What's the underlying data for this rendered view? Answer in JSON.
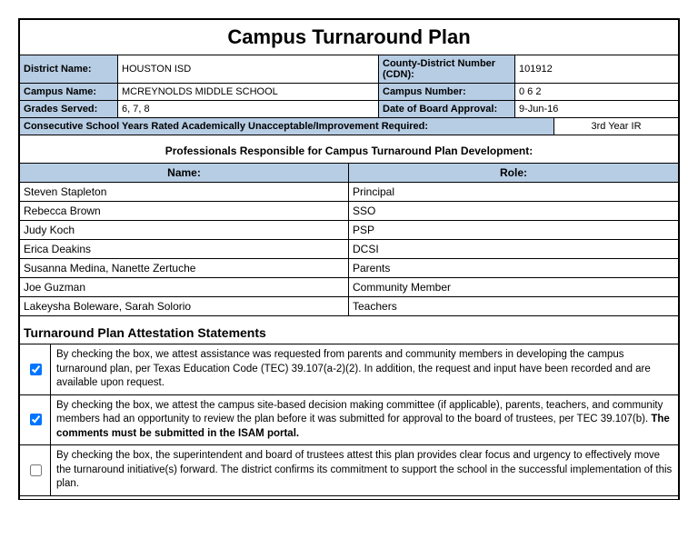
{
  "title": "Campus Turnaround Plan",
  "colors": {
    "header_bg": "#b7cde4",
    "border": "#000000"
  },
  "info": {
    "district_label": "District Name:",
    "district_value": "HOUSTON ISD",
    "cdn_label": "County-District Number (CDN):",
    "cdn_value": "101912",
    "campus_label": "Campus Name:",
    "campus_value": "MCREYNOLDS MIDDLE SCHOOL",
    "campus_num_label": "Campus Number:",
    "campus_num_value": "0 6 2",
    "grades_label": "Grades Served:",
    "grades_value": "6, 7, 8",
    "board_label": "Date of Board Approval:",
    "board_value": "9-Jun-16",
    "consec_label": "Consecutive School Years Rated Academically Unacceptable/Improvement Required:",
    "consec_value": "3rd Year IR"
  },
  "responsibles": {
    "heading": "Professionals Responsible for Campus Turnaround Plan Development:",
    "name_header": "Name:",
    "role_header": "Role:",
    "rows": [
      {
        "name": "Steven Stapleton",
        "role": "Principal"
      },
      {
        "name": "Rebecca Brown",
        "role": "SSO"
      },
      {
        "name": "Judy Koch",
        "role": "PSP"
      },
      {
        "name": "Erica Deakins",
        "role": "DCSI"
      },
      {
        "name": "Susanna Medina,  Nanette Zertuche",
        "role": "Parents"
      },
      {
        "name": "Joe Guzman",
        "role": "Community Member"
      },
      {
        "name": "Lakeysha Boleware, Sarah Solorio",
        "role": "Teachers"
      }
    ]
  },
  "attestation": {
    "heading": "Turnaround Plan Attestation Statements",
    "items": [
      {
        "checked": true,
        "text": "By checking the box, we attest assistance was requested from parents and community members in developing the campus turnaround plan, per Texas Education Code (TEC) 39.107(a-2)(2). In addition, the request and input have been recorded and are available upon request."
      },
      {
        "checked": true,
        "text_pre": "By checking the box, we attest the campus site-based decision making committee (if applicable), parents, teachers, and community members had an opportunity to review the plan before it was submitted for approval to the board of trustees, per TEC 39.107(b). ",
        "text_bold": "The comments must be submitted in the ISAM portal."
      },
      {
        "checked": false,
        "text": "By checking the box, the superintendent and board of trustees attest this plan provides clear focus and urgency to effectively move the turnaround initiative(s) forward. The district confirms its commitment to support the school in the successful implementation of this plan."
      }
    ]
  }
}
